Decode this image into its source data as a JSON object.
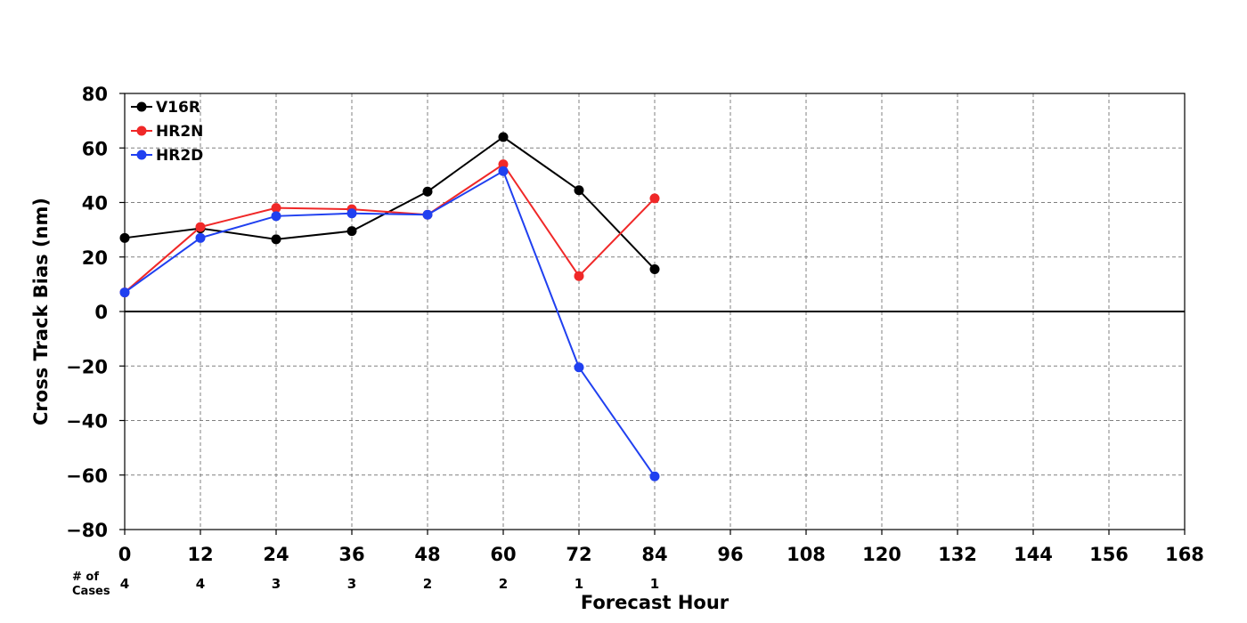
{
  "chart_data": {
    "type": "line",
    "xlabel": "Forecast Hour",
    "ylabel": "Cross Track Bias (nm)",
    "xlim": [
      0,
      168
    ],
    "ylim": [
      -80,
      80
    ],
    "x_ticks": [
      0,
      12,
      24,
      36,
      48,
      60,
      72,
      84,
      96,
      108,
      120,
      132,
      144,
      156,
      168
    ],
    "y_ticks": [
      80,
      60,
      40,
      20,
      0,
      -20,
      -40,
      -60,
      -80
    ],
    "y_tick_labels": [
      "80",
      "60",
      "40",
      "20",
      "0",
      "−20",
      "−40",
      "−60",
      "−80"
    ],
    "grid": true,
    "legend_position": "top-left",
    "cases_label": [
      "# of",
      "Cases"
    ],
    "cases": [
      {
        "x": 0,
        "n": "4"
      },
      {
        "x": 12,
        "n": "4"
      },
      {
        "x": 24,
        "n": "3"
      },
      {
        "x": 36,
        "n": "3"
      },
      {
        "x": 48,
        "n": "2"
      },
      {
        "x": 60,
        "n": "2"
      },
      {
        "x": 72,
        "n": "1"
      },
      {
        "x": 84,
        "n": "1"
      }
    ],
    "series": [
      {
        "name": "V16R",
        "color": "#000000",
        "x": [
          0,
          12,
          24,
          36,
          48,
          60,
          72,
          84
        ],
        "values": [
          27,
          30.5,
          26.5,
          29.5,
          44,
          64,
          44.5,
          15.5
        ]
      },
      {
        "name": "HR2N",
        "color": "#f02828",
        "x": [
          0,
          12,
          24,
          36,
          48,
          60,
          72,
          84
        ],
        "values": [
          7,
          31,
          38,
          37.5,
          35.5,
          54,
          13,
          41.5
        ]
      },
      {
        "name": "HR2D",
        "color": "#2040f0",
        "x": [
          0,
          12,
          24,
          36,
          48,
          60,
          72,
          84
        ],
        "values": [
          7,
          27,
          35,
          36,
          35.5,
          51.5,
          -20.5,
          -60.5
        ]
      }
    ]
  }
}
